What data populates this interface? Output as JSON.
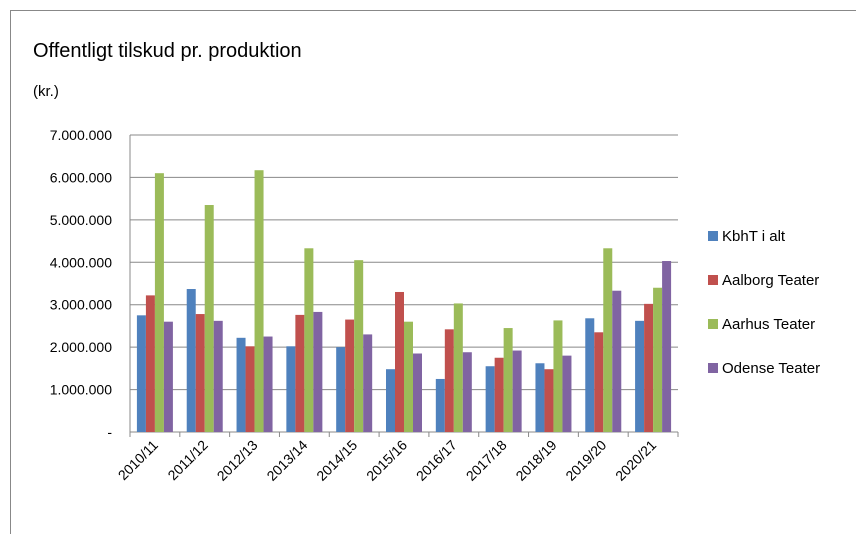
{
  "chart_data": {
    "type": "bar",
    "title": "Offentligt tilskud pr. produktion",
    "subtitle": "(kr.)",
    "categories": [
      "2010/11",
      "2011/12",
      "2012/13",
      "2013/14",
      "2014/15",
      "2015/16",
      "2016/17",
      "2017/18",
      "2018/19",
      "2019/20",
      "2020/21"
    ],
    "series": [
      {
        "name": "KbhT i alt",
        "color": "#4f81bd",
        "values": [
          2750000,
          3370000,
          2220000,
          2020000,
          2000000,
          1480000,
          1250000,
          1550000,
          1620000,
          2680000,
          2620000
        ]
      },
      {
        "name": "Aalborg Teater",
        "color": "#c0504d",
        "values": [
          3220000,
          2780000,
          2020000,
          2760000,
          2650000,
          3300000,
          2420000,
          1750000,
          1480000,
          2350000,
          3020000
        ]
      },
      {
        "name": "Aarhus Teater",
        "color": "#9bbb59",
        "values": [
          6100000,
          5350000,
          6170000,
          4330000,
          4050000,
          2600000,
          3030000,
          2450000,
          2630000,
          4330000,
          3400000
        ]
      },
      {
        "name": "Odense Teater",
        "color": "#8064a2",
        "values": [
          2600000,
          2620000,
          2250000,
          2830000,
          2300000,
          1850000,
          1880000,
          1920000,
          1800000,
          3330000,
          4030000
        ]
      }
    ],
    "ylim": [
      0,
      7000000
    ],
    "yticks": [
      {
        "value": 0,
        "label": "-"
      },
      {
        "value": 1000000,
        "label": "1.000.000"
      },
      {
        "value": 2000000,
        "label": "2.000.000"
      },
      {
        "value": 3000000,
        "label": "3.000.000"
      },
      {
        "value": 4000000,
        "label": "4.000.000"
      },
      {
        "value": 5000000,
        "label": "5.000.000"
      },
      {
        "value": 6000000,
        "label": "6.000.000"
      },
      {
        "value": 7000000,
        "label": "7.000.000"
      }
    ],
    "grid": true,
    "legend": "right"
  }
}
